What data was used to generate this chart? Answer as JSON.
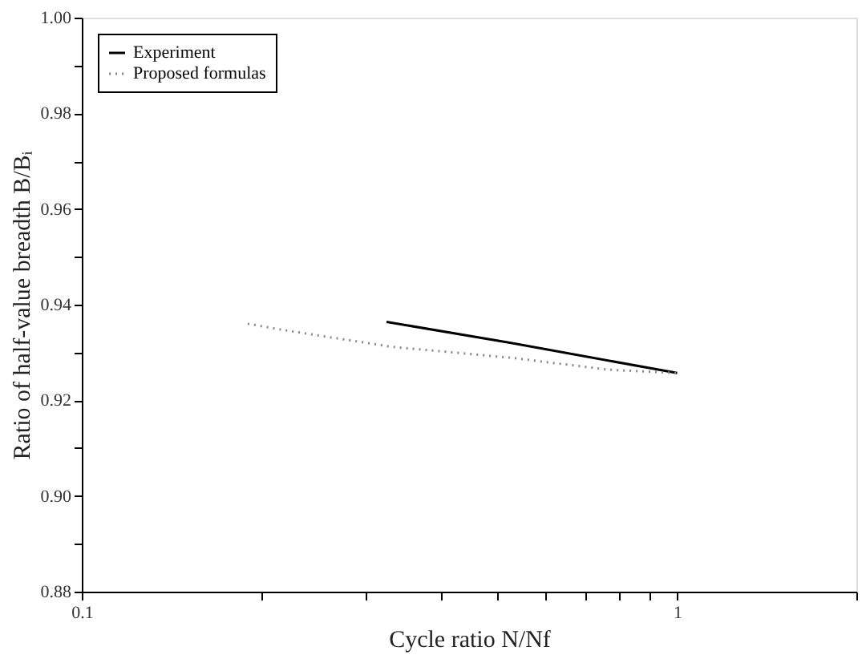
{
  "chart_data": {
    "type": "line",
    "xlabel": "Cycle ratio  N/Nf",
    "ylabel": "Ratio of half-value breadth  B/Bᵢ",
    "log": "x",
    "xlim": [
      0.1,
      2
    ],
    "ylim": [
      0.88,
      1.0
    ],
    "xticks": [
      {
        "value": 0.1,
        "label": "0.1"
      },
      {
        "value": 0.2,
        "label": null
      },
      {
        "value": 0.3,
        "label": null
      },
      {
        "value": 0.4,
        "label": null
      },
      {
        "value": 0.5,
        "label": null
      },
      {
        "value": 0.6,
        "label": null
      },
      {
        "value": 0.7,
        "label": null
      },
      {
        "value": 0.8,
        "label": null
      },
      {
        "value": 0.9,
        "label": null
      },
      {
        "value": 1,
        "label": "1"
      },
      {
        "value": 2,
        "label": null
      }
    ],
    "yticks": [
      {
        "value": 0.88,
        "label": "0.88"
      },
      {
        "value": 0.89,
        "label": null
      },
      {
        "value": 0.9,
        "label": "0.90"
      },
      {
        "value": 0.91,
        "label": null
      },
      {
        "value": 0.92,
        "label": "0.92"
      },
      {
        "value": 0.93,
        "label": null
      },
      {
        "value": 0.94,
        "label": "0.94"
      },
      {
        "value": 0.95,
        "label": null
      },
      {
        "value": 0.96,
        "label": "0.96"
      },
      {
        "value": 0.97,
        "label": null
      },
      {
        "value": 0.98,
        "label": "0.98"
      },
      {
        "value": 0.99,
        "label": null
      },
      {
        "value": 1.0,
        "label": "1.00"
      }
    ],
    "grid": false,
    "legend": "top left",
    "marker": "none",
    "series": [
      {
        "name": "Experiment",
        "color": "#000000",
        "line_style": "solid",
        "x": [
          0.325,
          0.526,
          1
        ],
        "values": [
          0.9364,
          0.932,
          0.9257
        ]
      },
      {
        "name": "Proposed formulas",
        "color": "#888888",
        "line_style": "dotted",
        "x": [
          0.19,
          0.218,
          0.331,
          0.526,
          0.767,
          1
        ],
        "values": [
          0.936,
          0.9347,
          0.9312,
          0.9289,
          0.9264,
          0.9257
        ]
      }
    ]
  }
}
